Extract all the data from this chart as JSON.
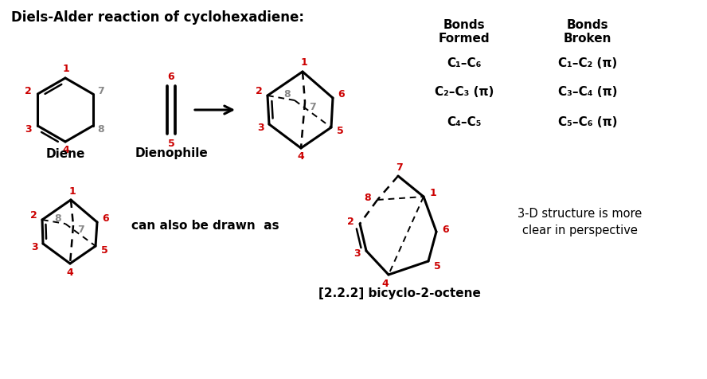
{
  "title": "Diels-Alder reaction of cyclohexadiene:",
  "bg_color": "#ffffff",
  "red": "#cc0000",
  "gray": "#888888",
  "black": "#000000",
  "bonds_formed_header": "Bonds\nFormed",
  "bonds_broken_header": "Bonds\nBroken",
  "bonds_formed": [
    "C₁–C₆",
    "C₂–C₃ (π)",
    "C₄–C₅"
  ],
  "bonds_broken": [
    "C₁–C₂ (π)",
    "C₃–C₄ (π)",
    "C₅–C₆ (π)"
  ],
  "label_diene": "Diene",
  "label_dienophile": "Dienophile",
  "label_product": "[2.2.2] bicyclo-2-octene",
  "label_3d": "3-D structure is more\nclear in perspective",
  "label_canalso": "can also be drawn  as"
}
